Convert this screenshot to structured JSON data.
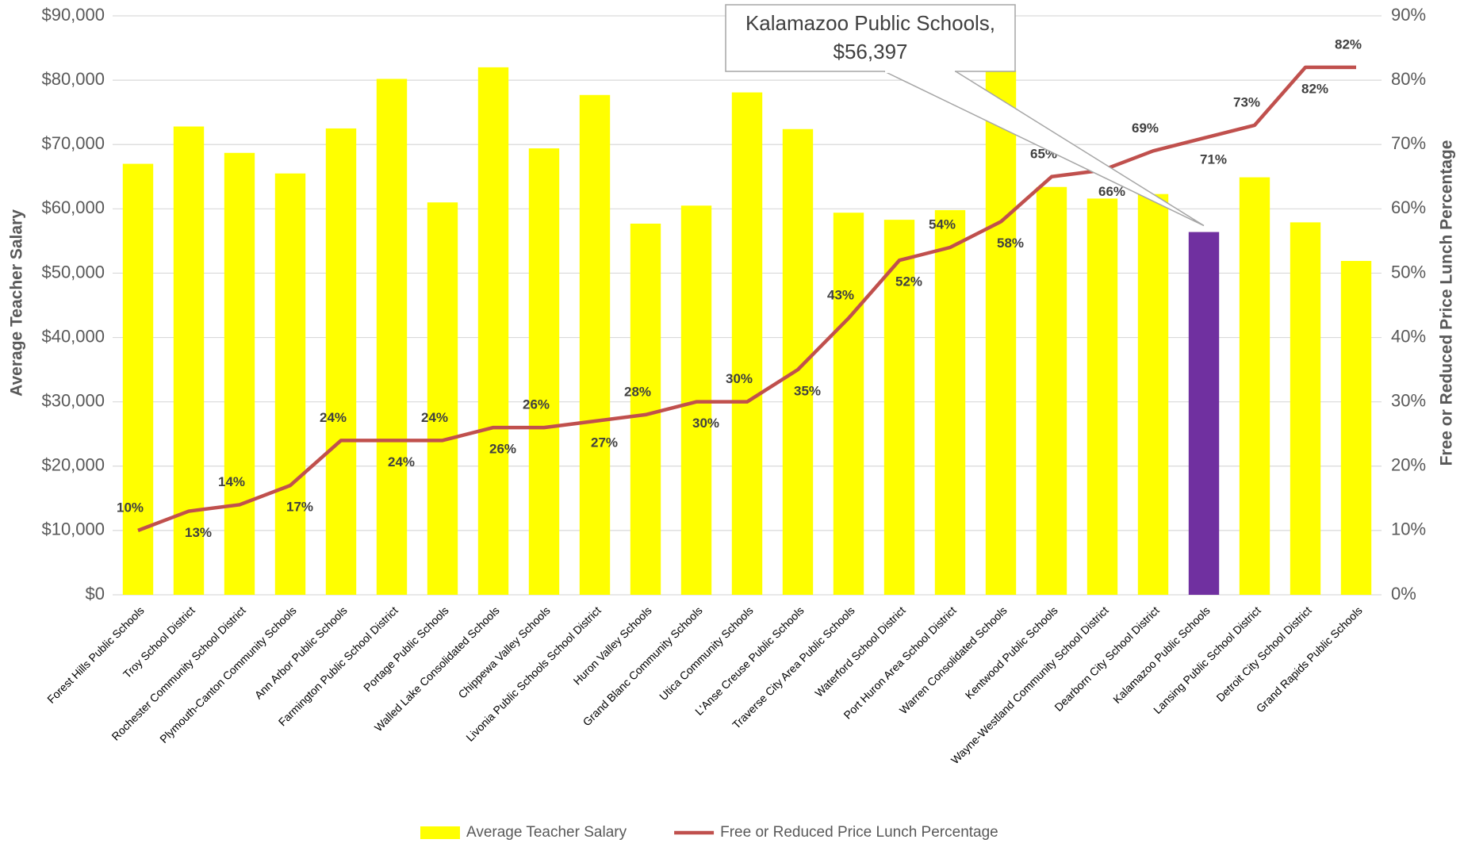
{
  "chart_data": {
    "type": "bar",
    "categories": [
      "Forest Hills Public Schools",
      "Troy School District",
      "Rochester Community School District",
      "Plymouth-Canton Community Schools",
      "Ann Arbor Public Schools",
      "Farmington Public School District",
      "Portage Public Schools",
      "Walled Lake Consolidated Schools",
      "Chippewa Valley Schools",
      "Livonia Public Schools School District",
      "Huron Valley Schools",
      "Grand Blanc Community Schools",
      "Utica Community Schools",
      "L'Anse Creuse Public Schools",
      "Traverse City Area Public Schools",
      "Waterford School District",
      "Port Huron Area School District",
      "Warren Consolidated Schools",
      "Kentwood Public Schools",
      "Wayne-Westland Community School District",
      "Dearborn City School District",
      "Kalamazoo Public Schools",
      "Lansing Public School District",
      "Detroit City School District",
      "Grand Rapids Public Schools"
    ],
    "series": [
      {
        "name": "Average Teacher Salary",
        "type": "bar",
        "color": "#ffff00",
        "colors": [
          "#ffff00",
          "#ffff00",
          "#ffff00",
          "#ffff00",
          "#ffff00",
          "#ffff00",
          "#ffff00",
          "#ffff00",
          "#ffff00",
          "#ffff00",
          "#ffff00",
          "#ffff00",
          "#ffff00",
          "#ffff00",
          "#ffff00",
          "#ffff00",
          "#ffff00",
          "#ffff00",
          "#ffff00",
          "#ffff00",
          "#ffff00",
          "#7030a0",
          "#ffff00",
          "#ffff00",
          "#ffff00"
        ],
        "values": [
          67000,
          72800,
          68700,
          65500,
          72500,
          80200,
          61000,
          82000,
          69400,
          77700,
          57700,
          60500,
          78100,
          72400,
          59400,
          58300,
          59800,
          81500,
          63400,
          61600,
          62300,
          56397,
          64900,
          57900,
          51900
        ]
      },
      {
        "name": "Free or Reduced Price Lunch Percentage",
        "type": "line",
        "axis": "y2",
        "color": "#c0504d",
        "values": [
          10,
          13,
          14,
          17,
          24,
          24,
          24,
          26,
          26,
          27,
          28,
          30,
          30,
          35,
          43,
          52,
          54,
          58,
          65,
          66,
          69,
          71,
          73,
          82,
          82
        ],
        "value_labels": [
          "10%",
          "13%",
          "14%",
          "17%",
          "24%",
          "24%",
          "24%",
          "26%",
          "26%",
          "27%",
          "28%",
          "30%",
          "30%",
          "35%",
          "43%",
          "52%",
          "54%",
          "58%",
          "65%",
          "66%",
          "69%",
          "71%",
          "73%",
          "82%",
          "82%"
        ]
      }
    ],
    "ylabel": "Average Teacher Salary",
    "y2label": "Free or Reduced Price Lunch Percentage",
    "ylim": [
      0,
      90000
    ],
    "yticks": [
      {
        "value": 0,
        "label": "$0"
      },
      {
        "value": 10000,
        "label": "$10,000"
      },
      {
        "value": 20000,
        "label": "$20,000"
      },
      {
        "value": 30000,
        "label": "$30,000"
      },
      {
        "value": 40000,
        "label": "$40,000"
      },
      {
        "value": 50000,
        "label": "$50,000"
      },
      {
        "value": 60000,
        "label": "$60,000"
      },
      {
        "value": 70000,
        "label": "$70,000"
      },
      {
        "value": 80000,
        "label": "$80,000"
      },
      {
        "value": 90000,
        "label": "$90,000"
      }
    ],
    "y2lim": [
      0,
      90
    ],
    "y2ticks": [
      {
        "value": 0,
        "label": "0%"
      },
      {
        "value": 10,
        "label": "10%"
      },
      {
        "value": 20,
        "label": "20%"
      },
      {
        "value": 30,
        "label": "30%"
      },
      {
        "value": 40,
        "label": "40%"
      },
      {
        "value": 50,
        "label": "50%"
      },
      {
        "value": 60,
        "label": "60%"
      },
      {
        "value": 70,
        "label": "70%"
      },
      {
        "value": 80,
        "label": "80%"
      },
      {
        "value": 90,
        "label": "90%"
      }
    ],
    "grid": true,
    "legend": "bottom",
    "annotation": {
      "lines": [
        "Kalamazoo Public Schools,",
        "$56,397"
      ],
      "category_index": 21
    }
  }
}
